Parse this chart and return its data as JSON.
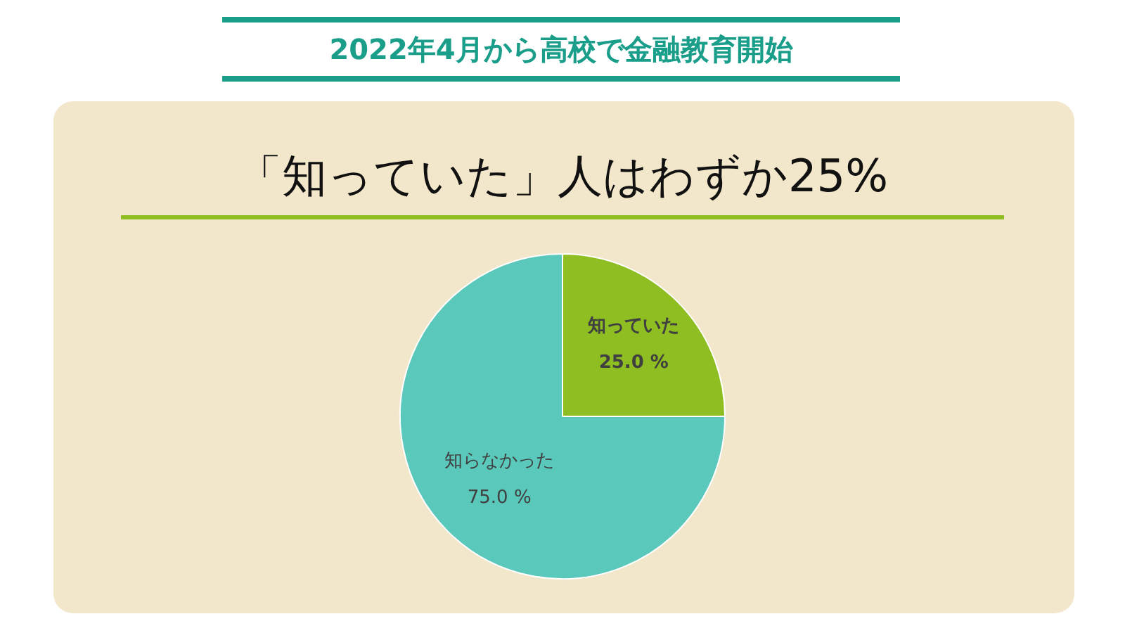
{
  "chart_data": {
    "type": "pie",
    "title": "2022年4月から高校で金融教育開始",
    "subtitle": "「知っていた」人はわずか25%",
    "categories": [
      "知っていた",
      "知らなかった"
    ],
    "values": [
      25,
      75
    ],
    "colors": [
      "#8fbe22",
      "#5ac8bb"
    ],
    "value_labels": [
      "25.0 %",
      "75.0 %"
    ],
    "legend": false
  }
}
